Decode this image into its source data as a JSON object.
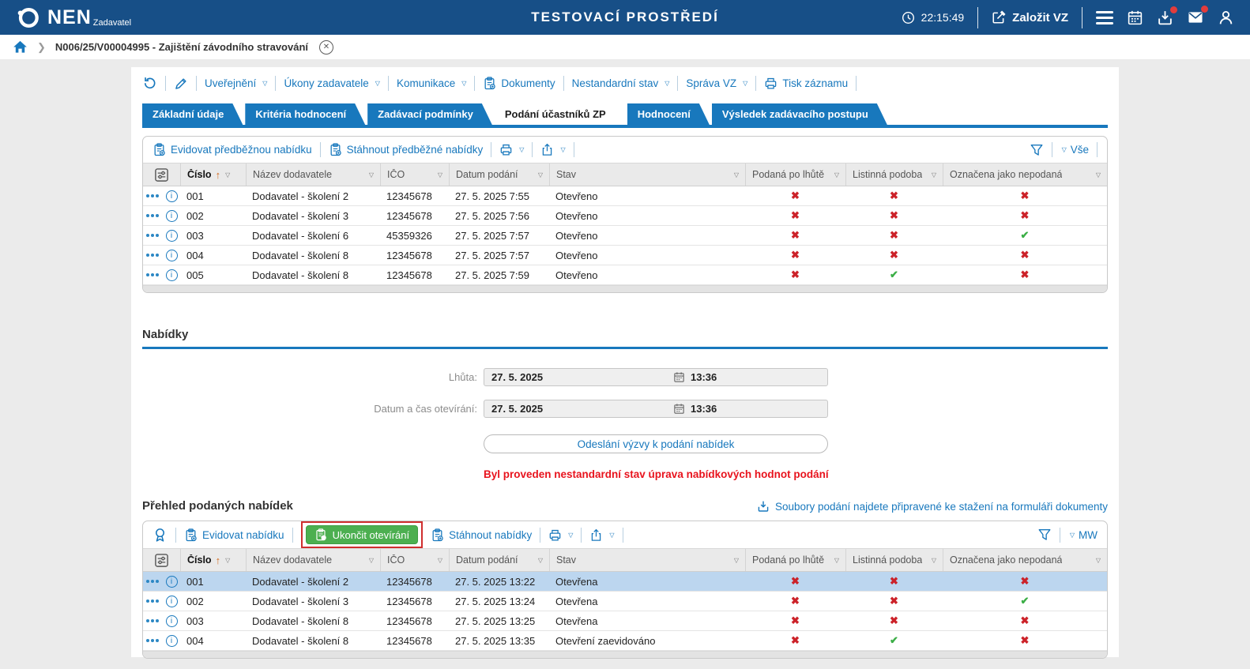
{
  "colors": {
    "topbar": "#174F87",
    "accent": "#1878BD",
    "green_button": "#4CAF50",
    "annotation_red": "#CF2E2E",
    "warning_red": "#E8131D",
    "mark_no": "#CC2229",
    "mark_yes": "#3BAE46",
    "selected_row": "#BCD6EF"
  },
  "topbar": {
    "logo": "NEN",
    "logo_sub": "Zadavatel",
    "environment": "TESTOVACÍ PROSTŘEDÍ",
    "time": "22:15:49",
    "create_button": "Založit VZ"
  },
  "breadcrumb": {
    "record": "N006/25/V00004995 - Zajištění závodního stravování"
  },
  "command_toolbar": {
    "items": [
      {
        "label": "Uveřejnění",
        "dropdown": true
      },
      {
        "label": "Úkony zadavatele",
        "dropdown": true
      },
      {
        "label": "Komunikace",
        "dropdown": true
      },
      {
        "label": "Dokumenty",
        "icon": "clipboard"
      },
      {
        "label": "Nestandardní stav",
        "dropdown": true
      },
      {
        "label": "Správa VZ",
        "dropdown": true
      },
      {
        "label": "Tisk záznamu",
        "icon": "printer"
      }
    ]
  },
  "tabs": [
    {
      "label": "Základní údaje",
      "active": false
    },
    {
      "label": "Kritéria hodnocení",
      "active": false
    },
    {
      "label": "Zadávací podmínky",
      "active": false
    },
    {
      "label": "Podání účastníků ZP",
      "active": true
    },
    {
      "label": "Hodnocení",
      "active": false
    },
    {
      "label": "Výsledek zadávacího postupu",
      "active": false
    }
  ],
  "table_columns": [
    "Číslo",
    "Název dodavatele",
    "IČO",
    "Datum podání",
    "Stav",
    "Podaná po lhůtě",
    "Listinná podoba",
    "Označena jako nepodaná"
  ],
  "preliminary": {
    "toolbar": {
      "evidovat": "Evidovat předběžnou nabídku",
      "stahnout": "Stáhnout předběžné nabídky",
      "view_filter": "Vše"
    },
    "rows": [
      {
        "cislo": "001",
        "dodavatel": "Dodavatel - školení 2",
        "ico": "12345678",
        "datum": "27. 5. 2025 7:55",
        "stav": "Otevřeno",
        "po_lhute": false,
        "listinna": false,
        "nepodana": false,
        "selected": false
      },
      {
        "cislo": "002",
        "dodavatel": "Dodavatel - školení 3",
        "ico": "12345678",
        "datum": "27. 5. 2025 7:56",
        "stav": "Otevřeno",
        "po_lhute": false,
        "listinna": false,
        "nepodana": false,
        "selected": false
      },
      {
        "cislo": "003",
        "dodavatel": "Dodavatel - školení 6",
        "ico": "45359326",
        "datum": "27. 5. 2025 7:57",
        "stav": "Otevřeno",
        "po_lhute": false,
        "listinna": false,
        "nepodana": true,
        "selected": false
      },
      {
        "cislo": "004",
        "dodavatel": "Dodavatel - školení 8",
        "ico": "12345678",
        "datum": "27. 5. 2025 7:57",
        "stav": "Otevřeno",
        "po_lhute": false,
        "listinna": false,
        "nepodana": false,
        "selected": false
      },
      {
        "cislo": "005",
        "dodavatel": "Dodavatel - školení 8",
        "ico": "12345678",
        "datum": "27. 5. 2025 7:59",
        "stav": "Otevřeno",
        "po_lhute": false,
        "listinna": true,
        "nepodana": false,
        "selected": false
      }
    ]
  },
  "nabidky": {
    "title": "Nabídky",
    "fields": [
      {
        "label": "Lhůta:",
        "date": "27. 5. 2025",
        "time": "13:36"
      },
      {
        "label": "Datum a čas otevírání:",
        "date": "27. 5. 2025",
        "time": "13:36"
      }
    ],
    "send_button": "Odeslání výzvy k podání nabídek",
    "warning": "Byl proveden nestandardní stav úprava nabídkových hodnot podání"
  },
  "podane": {
    "title": "Přehled podaných nabídek",
    "files_link": "Soubory podání najdete připravené ke stažení na formuláři dokumenty",
    "toolbar": {
      "evidovat": "Evidovat nabídku",
      "ukoncit": "Ukončit otevírání",
      "stahnout": "Stáhnout nabídky",
      "view_filter": "MW"
    },
    "rows": [
      {
        "cislo": "001",
        "dodavatel": "Dodavatel - školení 2",
        "ico": "12345678",
        "datum": "27. 5. 2025 13:22",
        "stav": "Otevřena",
        "po_lhute": false,
        "listinna": false,
        "nepodana": false,
        "selected": true
      },
      {
        "cislo": "002",
        "dodavatel": "Dodavatel - školení 3",
        "ico": "12345678",
        "datum": "27. 5. 2025 13:24",
        "stav": "Otevřena",
        "po_lhute": false,
        "listinna": false,
        "nepodana": true,
        "selected": false
      },
      {
        "cislo": "003",
        "dodavatel": "Dodavatel - školení 8",
        "ico": "12345678",
        "datum": "27. 5. 2025 13:25",
        "stav": "Otevřena",
        "po_lhute": false,
        "listinna": false,
        "nepodana": false,
        "selected": false
      },
      {
        "cislo": "004",
        "dodavatel": "Dodavatel - školení 8",
        "ico": "12345678",
        "datum": "27. 5. 2025 13:35",
        "stav": "Otevření zaevidováno",
        "po_lhute": false,
        "listinna": true,
        "nepodana": false,
        "selected": false
      }
    ]
  }
}
